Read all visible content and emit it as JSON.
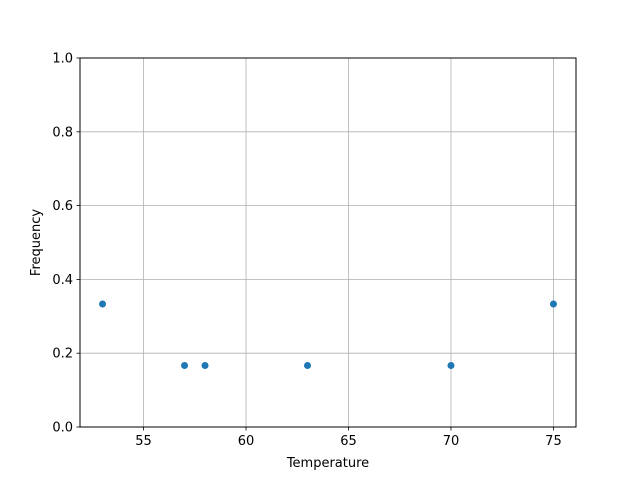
{
  "chart_data": {
    "type": "scatter",
    "title": "",
    "xlabel": "Temperature",
    "ylabel": "Frequency",
    "xlim": [
      51.9,
      76.1
    ],
    "ylim": [
      0,
      1.0
    ],
    "xticks": [
      55,
      60,
      65,
      70,
      75
    ],
    "yticks": [
      0.0,
      0.2,
      0.4,
      0.6,
      0.8,
      1.0
    ],
    "xtick_labels": [
      "55",
      "60",
      "65",
      "70",
      "75"
    ],
    "ytick_labels": [
      "0.0",
      "0.2",
      "0.4",
      "0.6",
      "0.8",
      "1.0"
    ],
    "grid": true,
    "color": "#1f77b4",
    "points": [
      {
        "x": 53,
        "y": 0.3333
      },
      {
        "x": 57,
        "y": 0.1667
      },
      {
        "x": 58,
        "y": 0.1667
      },
      {
        "x": 63,
        "y": 0.1667
      },
      {
        "x": 70,
        "y": 0.1667
      },
      {
        "x": 75,
        "y": 0.3333
      }
    ]
  }
}
